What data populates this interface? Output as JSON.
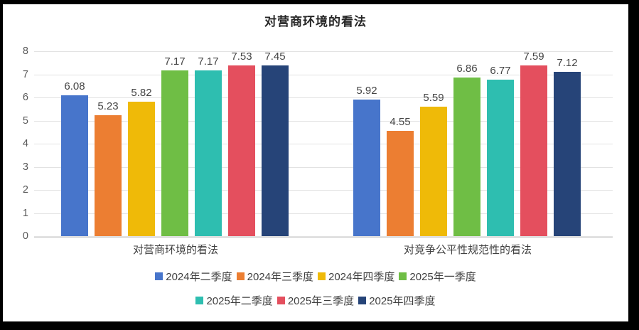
{
  "window": {
    "border_color": "#000000",
    "canvas_background": "#ffffff"
  },
  "chart_data": {
    "type": "bar",
    "title": "对营商环境的看法",
    "categories": [
      "对营商环境的看法",
      "对竞争公平性规范性的看法"
    ],
    "series": [
      {
        "name": "2024年二季度",
        "color": "#4775CB",
        "values": [
          6.08,
          5.92
        ]
      },
      {
        "name": "2024年三季度",
        "color": "#EC7E32",
        "values": [
          5.23,
          4.55
        ]
      },
      {
        "name": "2024年四季度",
        "color": "#EFBA08",
        "values": [
          5.82,
          5.59
        ]
      },
      {
        "name": "2025年一季度",
        "color": "#6FBE45",
        "values": [
          7.17,
          6.86
        ]
      },
      {
        "name": "2025年二季度",
        "color": "#2EBEB0",
        "values": [
          7.17,
          6.77
        ]
      },
      {
        "name": "2025年三季度",
        "color": "#E44F5E",
        "values": [
          7.53,
          7.59
        ]
      },
      {
        "name": "2025年四季度",
        "color": "#264478",
        "values": [
          7.45,
          7.12
        ]
      }
    ],
    "ylim": [
      0,
      8
    ],
    "yticks": [
      0,
      1,
      2,
      3,
      4,
      5,
      6,
      7,
      8
    ],
    "grid": true,
    "gridline_color": "#E2E2E2",
    "axis_line_color": "#C9C9C9",
    "value_labels": true,
    "value_label_decimals": 2,
    "legend_position": "bottom",
    "legend_rows": [
      4,
      3
    ],
    "text_colors": {
      "title": "#262626",
      "axis_ticks": "#595959",
      "value_labels": "#444444",
      "category_labels": "#404040",
      "legend_labels": "#404040"
    }
  }
}
